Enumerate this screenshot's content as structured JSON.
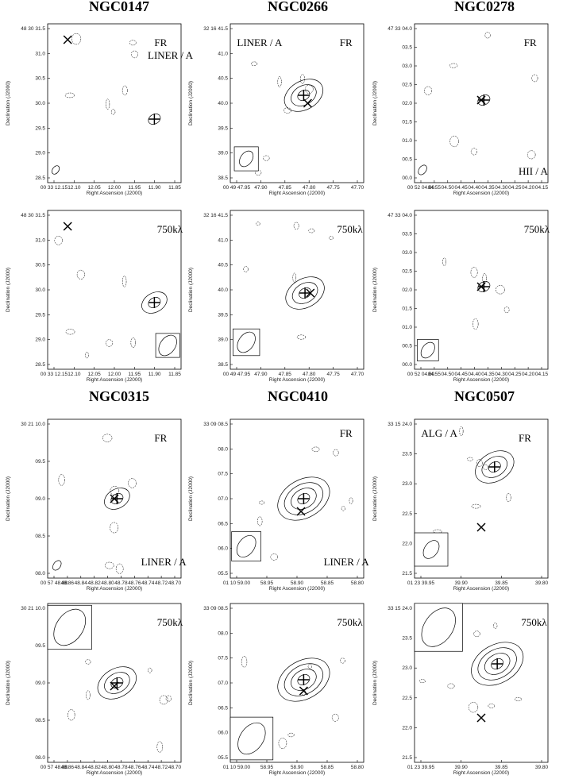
{
  "titles": [
    "NGC0147",
    "NGC0266",
    "NGC0278",
    "NGC0315",
    "NGC0410",
    "NGC0507"
  ],
  "panels": [
    {
      "ylabel": "Declination (J2000)",
      "xlabel": "Right Ascension (J2000)",
      "yticks": [
        "48 30 31.5",
        "31.0",
        "30.5",
        "30.0",
        "29.5",
        "29.0",
        "28.5"
      ],
      "xticks": [
        "00 33 12.15",
        "12.10",
        "12.05",
        "12.00",
        "11.95",
        "11.90",
        "11.85"
      ],
      "annotations": [
        "FR",
        "LINER / A"
      ]
    },
    {
      "ylabel": "Declination (J2000)",
      "xlabel": "Right Ascension (J2000)",
      "yticks": [
        "32 16 41.5",
        "41.0",
        "40.5",
        "40.0",
        "39.5",
        "39.0",
        "38.5"
      ],
      "xticks": [
        "00 49 47.95",
        "47.90",
        "47.85",
        "47.80",
        "47.75",
        "47.70"
      ],
      "annotations": [
        "LINER / A",
        "FR"
      ]
    },
    {
      "ylabel": "Declination (J2000)",
      "xlabel": "Right Ascension (J2000)",
      "yticks": [
        "47 33 04.0",
        "03.5",
        "03.0",
        "02.5",
        "02.0",
        "01.5",
        "01.0",
        "00.5",
        "00.0"
      ],
      "xticks": [
        "00 52 04.60",
        "04.55",
        "04.50",
        "04.45",
        "04.40",
        "04.35",
        "04.30",
        "04.25",
        "04.20",
        "04.15"
      ],
      "annotations": [
        "FR",
        "HII / A"
      ]
    },
    {
      "ylabel": "Declination (J2000)",
      "xlabel": "Right Ascension (J2000)",
      "yticks": [
        "48 30 31.5",
        "31.0",
        "30.5",
        "30.0",
        "29.5",
        "29.0",
        "28.5"
      ],
      "xticks": [
        "00 33 12.15",
        "12.10",
        "12.05",
        "12.00",
        "11.95",
        "11.90",
        "11.85"
      ],
      "annotations": [
        "750kλ"
      ]
    },
    {
      "ylabel": "Declination (J2000)",
      "xlabel": "Right Ascension (J2000)",
      "yticks": [
        "32 16 41.5",
        "41.0",
        "40.5",
        "40.0",
        "39.5",
        "39.0",
        "38.5"
      ],
      "xticks": [
        "00 49 47.95",
        "47.90",
        "47.85",
        "47.80",
        "47.75",
        "47.70"
      ],
      "annotations": [
        "750kλ"
      ]
    },
    {
      "ylabel": "Declination (J2000)",
      "xlabel": "Right Ascension (J2000)",
      "yticks": [
        "47 33 04.0",
        "03.5",
        "03.0",
        "02.5",
        "02.0",
        "01.5",
        "01.0",
        "00.5",
        "00.0"
      ],
      "xticks": [
        "00 52 04.60",
        "04.55",
        "04.50",
        "04.45",
        "04.40",
        "04.35",
        "04.30",
        "04.25",
        "04.20",
        "04.15"
      ],
      "annotations": [
        "750kλ"
      ]
    },
    {
      "ylabel": "Declination (J2000)",
      "xlabel": "Right Ascension (J2000)",
      "yticks": [
        "30 21 10.0",
        "09.5",
        "09.0",
        "08.5",
        "08.0"
      ],
      "xticks": [
        "00 57 48.88",
        "48.86",
        "48.84",
        "48.82",
        "48.80",
        "48.78",
        "48.76",
        "48.74",
        "48.72",
        "48.70"
      ],
      "annotations": [
        "FR",
        "LINER / A"
      ]
    },
    {
      "ylabel": "Declination (J2000)",
      "xlabel": "Right Ascension (J2000)",
      "yticks": [
        "33 09 08.5",
        "08.0",
        "07.5",
        "07.0",
        "06.5",
        "06.0",
        "05.5"
      ],
      "xticks": [
        "01 10 59.00",
        "58.95",
        "58.90",
        "58.85",
        "58.80"
      ],
      "annotations": [
        "FR",
        "LINER / A"
      ]
    },
    {
      "ylabel": "Declination (J2000)",
      "xlabel": "Right Ascension (J2000)",
      "yticks": [
        "33 15 24.0",
        "23.5",
        "23.0",
        "22.5",
        "22.0",
        "21.5"
      ],
      "xticks": [
        "01 23 39.95",
        "39.90",
        "39.85",
        "39.80"
      ],
      "annotations": [
        "ALG / A",
        "FR"
      ]
    },
    {
      "ylabel": "Declination (J2000)",
      "xlabel": "Right Ascension (J2000)",
      "yticks": [
        "30 21 10.0",
        "09.5",
        "09.0",
        "08.5",
        "08.0"
      ],
      "xticks": [
        "00 57 48.88",
        "48.86",
        "48.84",
        "48.82",
        "48.80",
        "48.78",
        "48.76",
        "48.74",
        "48.72",
        "48.70"
      ],
      "annotations": [
        "750kλ"
      ]
    },
    {
      "ylabel": "Declination (J2000)",
      "xlabel": "Right Ascension (J2000)",
      "yticks": [
        "33 09 08.5",
        "08.0",
        "07.5",
        "07.0",
        "06.5",
        "06.0",
        "05.5"
      ],
      "xticks": [
        "01 10 59.00",
        "58.95",
        "58.90",
        "58.85",
        "58.80"
      ],
      "annotations": [
        "750kλ"
      ]
    },
    {
      "ylabel": "Declination (J2000)",
      "xlabel": "Right Ascension (J2000)",
      "yticks": [
        "33 15 24.0",
        "23.5",
        "23.0",
        "22.5",
        "22.0",
        "21.5"
      ],
      "xticks": [
        "01 23 39.95",
        "39.90",
        "39.85",
        "39.80"
      ],
      "annotations": [
        "750kλ"
      ]
    }
  ]
}
